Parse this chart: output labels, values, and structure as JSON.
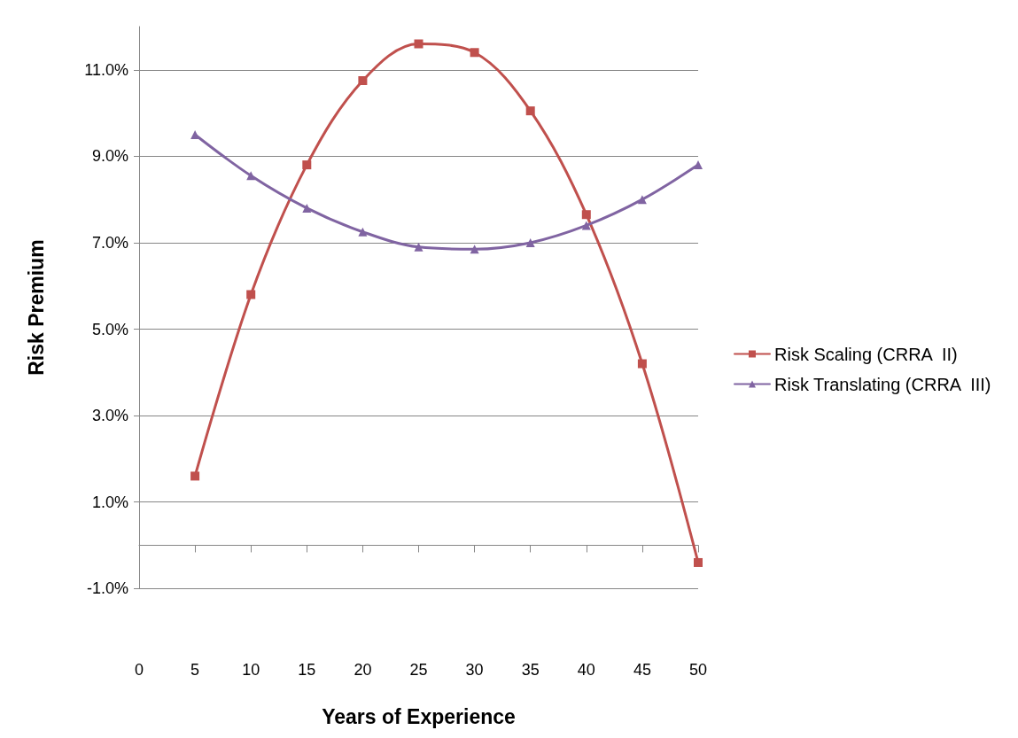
{
  "chart_data": {
    "type": "line",
    "xlabel": "Years of Experience",
    "ylabel": "Risk Premium",
    "x": [
      5,
      10,
      15,
      20,
      25,
      30,
      35,
      40,
      45,
      50
    ],
    "series": [
      {
        "name": "Risk Scaling (CRRA  II)",
        "color": "#c0504d",
        "marker": "square",
        "values": [
          1.6,
          5.8,
          8.8,
          10.75,
          11.6,
          11.4,
          10.05,
          7.65,
          4.2,
          -0.4
        ]
      },
      {
        "name": "Risk Translating (CRRA  III)",
        "color": "#8064a2",
        "marker": "triangle",
        "values": [
          9.5,
          8.55,
          7.8,
          7.25,
          6.9,
          6.85,
          7.0,
          7.4,
          8.0,
          8.8
        ]
      }
    ],
    "xlim": [
      0,
      50
    ],
    "xticks": [
      0,
      5,
      10,
      15,
      20,
      25,
      30,
      35,
      40,
      45,
      50
    ],
    "ylim": [
      -1,
      12
    ],
    "yticks": [
      {
        "value": -1,
        "label": "-1.0%"
      },
      {
        "value": 1,
        "label": "1.0%"
      },
      {
        "value": 3,
        "label": "3.0%"
      },
      {
        "value": 5,
        "label": "5.0%"
      },
      {
        "value": 7,
        "label": "7.0%"
      },
      {
        "value": 9,
        "label": "9.0%"
      },
      {
        "value": 11,
        "label": "11.0%"
      }
    ],
    "grid": "y",
    "legend": "right",
    "line_style": "solid"
  }
}
